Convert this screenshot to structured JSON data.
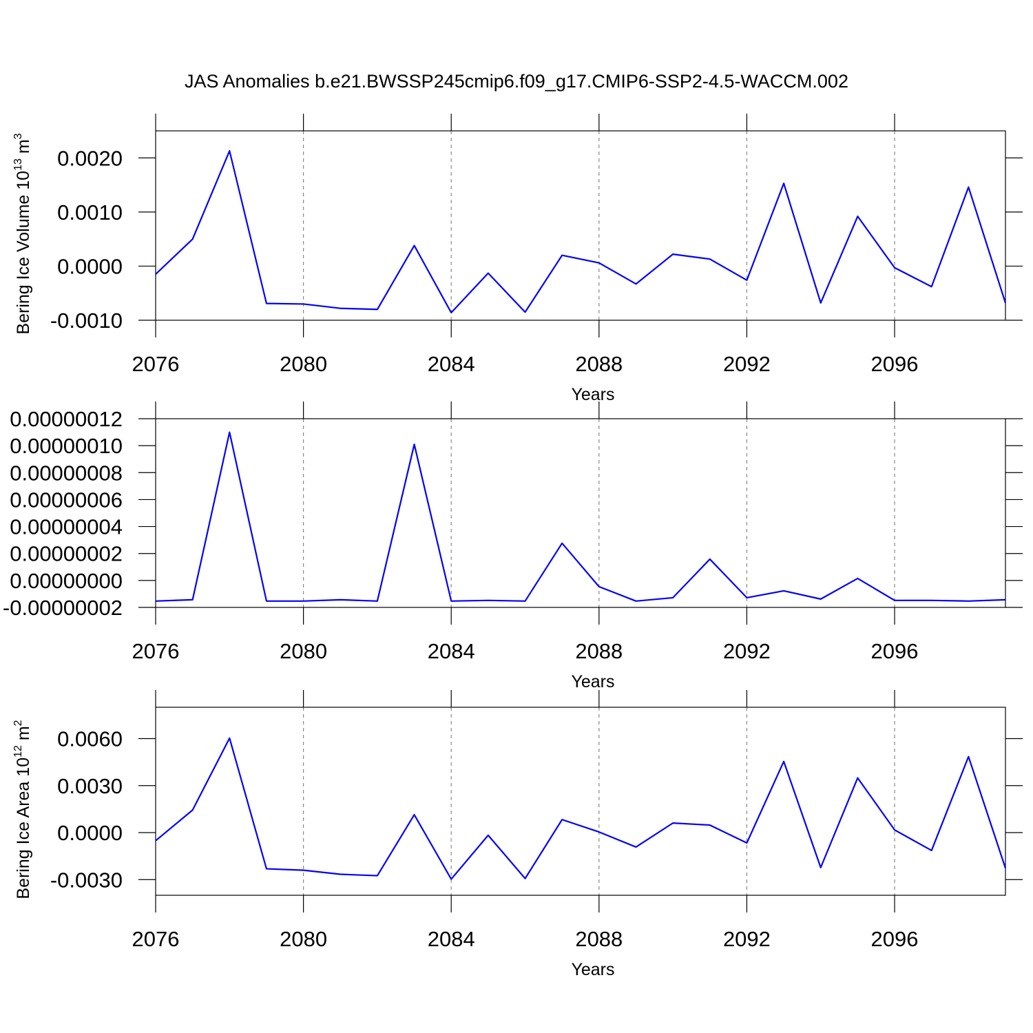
{
  "title": "JAS Anomalies b.e21.BWSSP245cmip6.f09_g17.CMIP6-SSP2-4.5-WACCM.002",
  "chart_data": [
    {
      "type": "line",
      "ylabel": {
        "text": "Bering Ice Volume 10",
        "exp": "13",
        "unit": " m",
        "unit_exp": "3"
      },
      "xlabel": "Years",
      "x": [
        2076,
        2077,
        2078,
        2079,
        2080,
        2081,
        2082,
        2083,
        2084,
        2085,
        2086,
        2087,
        2088,
        2089,
        2090,
        2091,
        2092,
        2093,
        2094,
        2095,
        2096,
        2097,
        2098,
        2099
      ],
      "values": [
        -0.00015,
        0.0005,
        0.00213,
        -0.00069,
        -0.0007,
        -0.00078,
        -0.0008,
        0.00038,
        -0.00086,
        -0.00013,
        -0.00085,
        0.0002,
        6e-05,
        -0.00033,
        0.00022,
        0.00013,
        -0.00026,
        0.00153,
        -0.00068,
        0.00092,
        -3e-05,
        -0.00038,
        0.00146,
        -0.00068
      ],
      "color": "#0000ff",
      "xlim": [
        2076,
        2099
      ],
      "xticks": [
        2076,
        2080,
        2084,
        2088,
        2092,
        2096
      ],
      "ylim": [
        -0.001,
        0.0025
      ],
      "yticks": [
        {
          "value": -0.001,
          "label": "-0.0010"
        },
        {
          "value": 0,
          "label": "0.0000"
        },
        {
          "value": 0.001,
          "label": "0.0010"
        },
        {
          "value": 0.002,
          "label": "0.0020"
        }
      ],
      "xgrid": true
    },
    {
      "type": "line",
      "xlabel": "Years",
      "x": [
        2076,
        2077,
        2078,
        2079,
        2080,
        2081,
        2082,
        2083,
        2084,
        2085,
        2086,
        2087,
        2088,
        2089,
        2090,
        2091,
        2092,
        2093,
        2094,
        2095,
        2096,
        2097,
        2098,
        2099
      ],
      "values": [
        -1.53e-08,
        -1.43e-08,
        1.1e-07,
        -1.53e-08,
        -1.53e-08,
        -1.43e-08,
        -1.53e-08,
        1.01e-07,
        -1.53e-08,
        -1.48e-08,
        -1.53e-08,
        2.76e-08,
        -4.6e-09,
        -1.53e-08,
        -1.28e-08,
        1.58e-08,
        -1.28e-08,
        -7.7e-09,
        -1.38e-08,
        1.5e-09,
        -1.48e-08,
        -1.48e-08,
        -1.53e-08,
        -1.43e-08
      ],
      "color": "#0000ff",
      "xlim": [
        2076,
        2099
      ],
      "xticks": [
        2076,
        2080,
        2084,
        2088,
        2092,
        2096
      ],
      "ylim": [
        -2e-08,
        1.2e-07
      ],
      "yticks": [
        {
          "value": -2e-08,
          "label": "-0.00000002"
        },
        {
          "value": 0,
          "label": "0.00000000"
        },
        {
          "value": 2e-08,
          "label": "0.00000002"
        },
        {
          "value": 4e-08,
          "label": "0.00000004"
        },
        {
          "value": 6e-08,
          "label": "0.00000006"
        },
        {
          "value": 8e-08,
          "label": "0.00000008"
        },
        {
          "value": 1e-07,
          "label": "0.00000010"
        },
        {
          "value": 1.2e-07,
          "label": "0.00000012"
        }
      ],
      "xgrid": true
    },
    {
      "type": "line",
      "ylabel": {
        "text": "Bering Ice Area 10",
        "exp": "12",
        "unit": " m",
        "unit_exp": "2"
      },
      "xlabel": "Years",
      "x": [
        2076,
        2077,
        2078,
        2079,
        2080,
        2081,
        2082,
        2083,
        2084,
        2085,
        2086,
        2087,
        2088,
        2089,
        2090,
        2091,
        2092,
        2093,
        2094,
        2095,
        2096,
        2097,
        2098,
        2099
      ],
      "values": [
        -0.00052,
        0.00144,
        0.00603,
        -0.00231,
        -0.0024,
        -0.00266,
        -0.00275,
        0.00114,
        -0.00297,
        -0.00017,
        -0.00293,
        0.00083,
        4e-05,
        -0.00092,
        0.00061,
        0.00048,
        -0.00066,
        0.00454,
        -0.00223,
        0.00349,
        0.00017,
        -0.00114,
        0.00485,
        -0.00227
      ],
      "color": "#0000ff",
      "xlim": [
        2076,
        2099
      ],
      "xticks": [
        2076,
        2080,
        2084,
        2088,
        2092,
        2096
      ],
      "ylim": [
        -0.004,
        0.008
      ],
      "yticks": [
        {
          "value": -0.003,
          "label": "-0.0030"
        },
        {
          "value": 0,
          "label": "0.0000"
        },
        {
          "value": 0.003,
          "label": "0.0030"
        },
        {
          "value": 0.006,
          "label": "0.0060"
        }
      ],
      "xgrid": true
    }
  ]
}
